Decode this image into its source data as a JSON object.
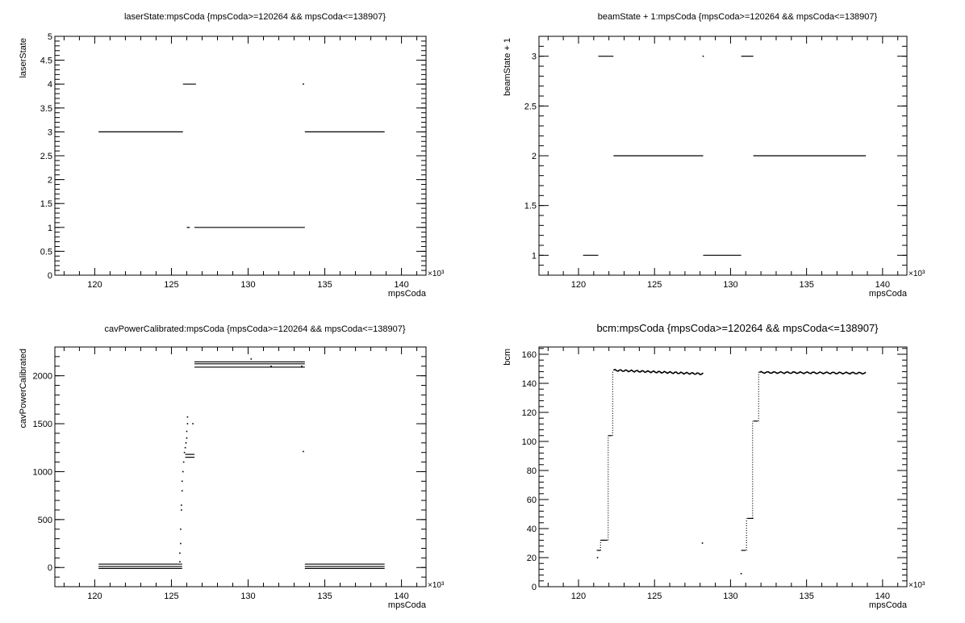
{
  "chart_data": [
    {
      "type": "scatter",
      "title": "laserState:mpsCoda {mpsCoda>=120264 && mpsCoda<=138907}",
      "xlabel": "mpsCoda",
      "ylabel": "laserState",
      "x_exponent": "×10³",
      "xlim": [
        117.4,
        141.6
      ],
      "ylim": [
        0,
        5
      ],
      "xticks": [
        "120",
        "125",
        "130",
        "135",
        "140"
      ],
      "yticks": [
        "0",
        "0.5",
        "1",
        "1.5",
        "2",
        "2.5",
        "3",
        "3.5",
        "4",
        "4.5",
        "5"
      ],
      "grid": false,
      "segments": [
        {
          "x0": 120.25,
          "x1": 125.75,
          "y": 3
        },
        {
          "x0": 125.75,
          "x1": 126.6,
          "y": 4
        },
        {
          "x0": 126.0,
          "x1": 126.2,
          "y": 1
        },
        {
          "x0": 126.5,
          "x1": 133.7,
          "y": 1
        },
        {
          "x0": 133.7,
          "x1": 138.9,
          "y": 3
        }
      ],
      "points": [
        {
          "x": 133.6,
          "y": 4
        }
      ]
    },
    {
      "type": "scatter",
      "title": "beamState + 1:mpsCoda {mpsCoda>=120264 && mpsCoda<=138907}",
      "xlabel": "mpsCoda",
      "ylabel": "beamState + 1",
      "x_exponent": "×10³",
      "xlim": [
        117.4,
        141.6
      ],
      "ylim": [
        0.8,
        3.2
      ],
      "xticks": [
        "120",
        "125",
        "130",
        "135",
        "140"
      ],
      "yticks": [
        "1",
        "1.5",
        "2",
        "2.5",
        "3"
      ],
      "grid": false,
      "segments": [
        {
          "x0": 120.3,
          "x1": 121.3,
          "y": 1
        },
        {
          "x0": 121.3,
          "x1": 122.3,
          "y": 3
        },
        {
          "x0": 122.3,
          "x1": 128.2,
          "y": 2
        },
        {
          "x0": 128.2,
          "x1": 130.7,
          "y": 1
        },
        {
          "x0": 130.7,
          "x1": 131.5,
          "y": 3
        },
        {
          "x0": 131.5,
          "x1": 138.9,
          "y": 2
        }
      ],
      "points": [
        {
          "x": 128.2,
          "y": 3
        }
      ]
    },
    {
      "type": "scatter",
      "title": "cavPowerCalibrated:mpsCoda {mpsCoda>=120264 && mpsCoda<=138907}",
      "xlabel": "mpsCoda",
      "ylabel": "cavPowerCalibrated",
      "x_exponent": "×10³",
      "xlim": [
        117.4,
        141.6
      ],
      "ylim": [
        -200,
        2300
      ],
      "xticks": [
        "120",
        "125",
        "130",
        "135",
        "140"
      ],
      "yticks": [
        "0",
        "500",
        "1000",
        "1500",
        "2000"
      ],
      "grid": false,
      "segments": [
        {
          "x0": 120.25,
          "x1": 125.7,
          "y": 35
        },
        {
          "x0": 120.25,
          "x1": 125.7,
          "y": 10
        },
        {
          "x0": 120.25,
          "x1": 125.7,
          "y": -10
        },
        {
          "x0": 125.9,
          "x1": 126.5,
          "y": 1180
        },
        {
          "x0": 125.9,
          "x1": 126.5,
          "y": 1150
        },
        {
          "x0": 126.5,
          "x1": 133.7,
          "y": 2145
        },
        {
          "x0": 126.5,
          "x1": 133.7,
          "y": 2125
        },
        {
          "x0": 126.5,
          "x1": 133.7,
          "y": 2090
        },
        {
          "x0": 133.7,
          "x1": 138.9,
          "y": 35
        },
        {
          "x0": 133.7,
          "x1": 138.9,
          "y": 10
        },
        {
          "x0": 133.7,
          "x1": 138.9,
          "y": -10
        }
      ],
      "points": [
        {
          "x": 125.55,
          "y": 60
        },
        {
          "x": 125.55,
          "y": 150
        },
        {
          "x": 125.6,
          "y": 250
        },
        {
          "x": 125.6,
          "y": 400
        },
        {
          "x": 125.65,
          "y": 600
        },
        {
          "x": 125.65,
          "y": 650
        },
        {
          "x": 125.7,
          "y": 800
        },
        {
          "x": 125.7,
          "y": 900
        },
        {
          "x": 125.75,
          "y": 1000
        },
        {
          "x": 125.8,
          "y": 1100
        },
        {
          "x": 125.85,
          "y": 1200
        },
        {
          "x": 125.9,
          "y": 1250
        },
        {
          "x": 125.95,
          "y": 1300
        },
        {
          "x": 126.0,
          "y": 1350
        },
        {
          "x": 126.0,
          "y": 1420
        },
        {
          "x": 126.05,
          "y": 1500
        },
        {
          "x": 126.05,
          "y": 1570
        },
        {
          "x": 126.4,
          "y": 1500
        },
        {
          "x": 130.2,
          "y": 2175
        },
        {
          "x": 131.5,
          "y": 2100
        },
        {
          "x": 133.5,
          "y": 2100
        },
        {
          "x": 133.6,
          "y": 1210
        }
      ]
    },
    {
      "type": "scatter",
      "title": "bcm:mpsCoda {mpsCoda>=120264 && mpsCoda<=138907}",
      "xlabel": "mpsCoda",
      "ylabel": "bcm",
      "x_exponent": "×10³",
      "xlim": [
        117.4,
        141.6
      ],
      "ylim": [
        0,
        165
      ],
      "xticks": [
        "120",
        "125",
        "130",
        "135",
        "140"
      ],
      "yticks": [
        "0",
        "20",
        "40",
        "60",
        "80",
        "100",
        "120",
        "140",
        "160"
      ],
      "grid": false,
      "segments": [
        {
          "x0": 121.2,
          "x1": 121.45,
          "y": 25
        },
        {
          "x0": 121.45,
          "x1": 121.9,
          "y": 32
        },
        {
          "x0": 121.95,
          "x1": 122.2,
          "y": 104
        },
        {
          "x0": 130.7,
          "x1": 131.0,
          "y": 25
        },
        {
          "x0": 131.1,
          "x1": 131.5,
          "y": 47
        },
        {
          "x0": 131.5,
          "x1": 131.8,
          "y": 114
        }
      ],
      "traces": [
        {
          "x0": 122.3,
          "x1": 128.2,
          "y_start": 149,
          "y_end": 146.5
        },
        {
          "x0": 131.9,
          "x1": 138.9,
          "y_start": 147.5,
          "y_end": 147
        }
      ],
      "points": [
        {
          "x": 121.25,
          "y": 20
        },
        {
          "x": 128.15,
          "y": 30
        },
        {
          "x": 130.7,
          "y": 9
        }
      ],
      "risers": [
        {
          "x": 121.45,
          "y0": 25,
          "y1": 32
        },
        {
          "x": 121.95,
          "y0": 32,
          "y1": 104
        },
        {
          "x": 122.25,
          "y0": 104,
          "y1": 149
        },
        {
          "x": 131.05,
          "y0": 25,
          "y1": 47
        },
        {
          "x": 131.45,
          "y0": 47,
          "y1": 114
        },
        {
          "x": 131.85,
          "y0": 114,
          "y1": 148
        }
      ]
    }
  ]
}
